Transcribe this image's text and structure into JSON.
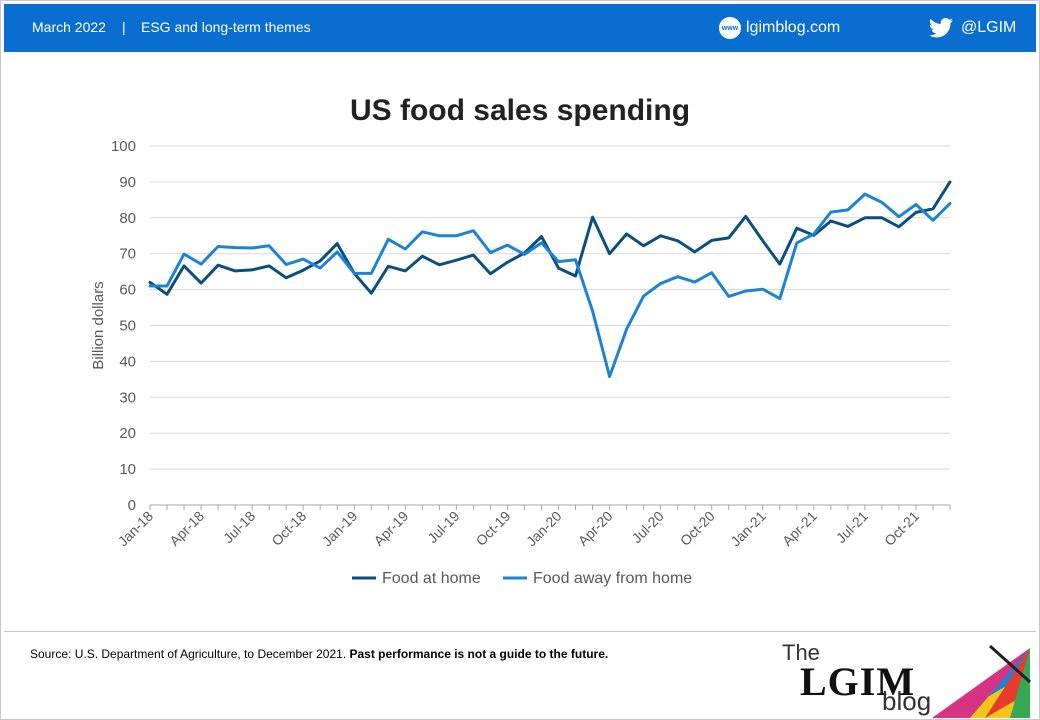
{
  "header": {
    "date": "March 2022",
    "separator": "|",
    "theme": "ESG and long-term themes",
    "website_icon_text": "www",
    "website": "lgimblog.com",
    "twitter_handle": "@LGIM",
    "background_color": "#0a6ed1"
  },
  "footer": {
    "source_text": "Source: U.S. Department of Agriculture, to December 2021. ",
    "disclaimer": "Past performance is not a guide to the future.",
    "logo_the": "The",
    "logo_lgim": "LGIM",
    "logo_blog": "blog"
  },
  "chart_data": {
    "type": "line",
    "title": "US food sales spending",
    "ylabel": "Billion dollars",
    "xlabel": "",
    "ylim": [
      0,
      100
    ],
    "yticks": [
      0,
      10,
      20,
      30,
      40,
      50,
      60,
      70,
      80,
      90,
      100
    ],
    "grid": true,
    "legend_position": "bottom",
    "x": [
      "Jan-18",
      "Feb-18",
      "Mar-18",
      "Apr-18",
      "May-18",
      "Jun-18",
      "Jul-18",
      "Aug-18",
      "Sep-18",
      "Oct-18",
      "Nov-18",
      "Dec-18",
      "Jan-19",
      "Feb-19",
      "Mar-19",
      "Apr-19",
      "May-19",
      "Jun-19",
      "Jul-19",
      "Aug-19",
      "Sep-19",
      "Oct-19",
      "Nov-19",
      "Dec-19",
      "Jan-20",
      "Feb-20",
      "Mar-20",
      "Apr-20",
      "May-20",
      "Jun-20",
      "Jul-20",
      "Aug-20",
      "Sep-20",
      "Oct-20",
      "Nov-20",
      "Dec-20",
      "Jan-21",
      "Feb-21",
      "Mar-21",
      "Apr-21",
      "May-21",
      "Jun-21",
      "Jul-21",
      "Aug-21",
      "Sep-21",
      "Oct-21",
      "Nov-21",
      "Dec-21"
    ],
    "xtick_labels": [
      "Jan-18",
      "Apr-18",
      "Jul-18",
      "Oct-18",
      "Jan-19",
      "Apr-19",
      "Jul-19",
      "Oct-19",
      "Jan-20",
      "Apr-20",
      "Jul-20",
      "Oct-20",
      "Jan-21",
      "Apr-21",
      "Jul-21",
      "Oct-21"
    ],
    "series": [
      {
        "name": "Food at home",
        "color": "#0b4f7c",
        "values": [
          62.0,
          58.7,
          66.6,
          61.8,
          66.8,
          65.2,
          65.5,
          66.6,
          63.3,
          65.4,
          68.0,
          72.8,
          64.5,
          59.0,
          66.5,
          65.2,
          69.3,
          66.9,
          68.2,
          69.6,
          64.4,
          67.6,
          70.2,
          74.8,
          66.0,
          63.8,
          80.2,
          70.0,
          75.5,
          72.2,
          75.0,
          73.6,
          70.5,
          73.7,
          74.4,
          80.4,
          73.6,
          67.1,
          77.1,
          75.1,
          79.1,
          77.6,
          80.0,
          80.0,
          77.5,
          81.5,
          82.5,
          90.0
        ]
      },
      {
        "name": "Food away from home",
        "color": "#1c83d4",
        "values": [
          61.0,
          61.0,
          69.9,
          67.1,
          72.0,
          71.7,
          71.6,
          72.2,
          67.0,
          68.5,
          66.0,
          70.5,
          64.5,
          64.5,
          74.0,
          71.3,
          76.1,
          75.0,
          75.0,
          76.4,
          70.3,
          72.4,
          69.8,
          73.0,
          67.8,
          68.3,
          54.0,
          35.8,
          49.0,
          58.2,
          61.7,
          63.6,
          62.1,
          64.7,
          58.1,
          59.6,
          60.1,
          57.5,
          73.0,
          75.5,
          81.6,
          82.2,
          86.6,
          84.3,
          80.3,
          83.7,
          79.3,
          84.0
        ]
      }
    ]
  }
}
